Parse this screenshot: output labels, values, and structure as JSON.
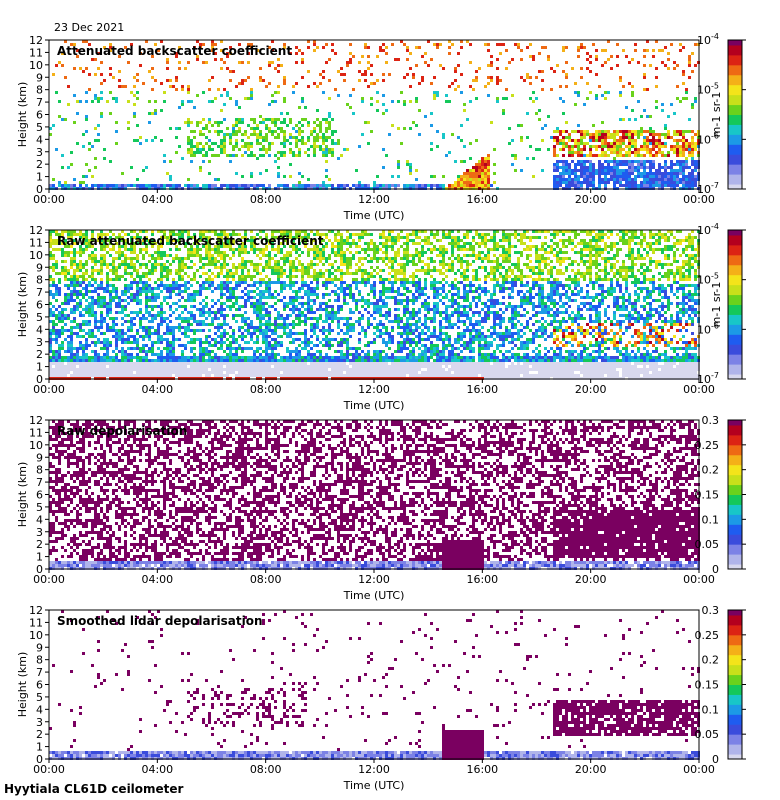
{
  "header": {
    "date": "23 Dec 2021"
  },
  "footer": {
    "site": "Hyytiala CL61D ceilometer"
  },
  "chart_data": [
    {
      "type": "heatmap",
      "title": "Attenuated backscatter coefficient",
      "xlabel": "Time (UTC)",
      "ylabel": "Height (km)",
      "x_ticks": [
        "00:00",
        "04:00",
        "08:00",
        "12:00",
        "16:00",
        "20:00",
        "00:00"
      ],
      "y_ticks": [
        "0",
        "1",
        "2",
        "3",
        "4",
        "5",
        "6",
        "7",
        "8",
        "9",
        "10",
        "11",
        "12"
      ],
      "ylim": [
        0,
        12
      ],
      "xlim_hours": [
        0,
        24
      ],
      "colorbar": {
        "scale": "log",
        "range": [
          1e-07,
          0.0001
        ],
        "ticks": [
          "10-7",
          "10-6",
          "10-5",
          "10-4"
        ],
        "unit": "m-1 sr-1"
      },
      "features": [
        {
          "desc": "boundary layer",
          "t": [
            0,
            16
          ],
          "h": [
            0,
            0.6
          ],
          "level": 0.55
        },
        {
          "desc": "mid-level cloud",
          "t": [
            5,
            10.5
          ],
          "h": [
            2.7,
            5.9
          ],
          "level": 0.6
        },
        {
          "desc": "rising cloud",
          "t": [
            14.5,
            16.2
          ],
          "h": [
            0,
            3
          ],
          "level": 0.9
        },
        {
          "desc": "cloud layer",
          "t": [
            18.5,
            24
          ],
          "h": [
            2.8,
            4.8
          ],
          "level": 0.9
        }
      ]
    },
    {
      "type": "heatmap",
      "title": "Raw attenuated backscatter coefficient",
      "xlabel": "Time (UTC)",
      "ylabel": "Height (km)",
      "x_ticks": [
        "00:00",
        "04:00",
        "08:00",
        "12:00",
        "16:00",
        "20:00",
        "00:00"
      ],
      "y_ticks": [
        "0",
        "1",
        "2",
        "3",
        "4",
        "5",
        "6",
        "7",
        "8",
        "9",
        "10",
        "11",
        "12"
      ],
      "ylim": [
        0,
        12
      ],
      "xlim_hours": [
        0,
        24
      ],
      "colorbar": {
        "scale": "log",
        "range": [
          1e-07,
          0.0001
        ],
        "ticks": [
          "10-7",
          "10-6",
          "10-5",
          "10-4"
        ],
        "unit": "m-1 sr-1"
      }
    },
    {
      "type": "heatmap",
      "title": "Raw depolarisation",
      "xlabel": "Time (UTC)",
      "ylabel": "Height (km)",
      "x_ticks": [
        "00:00",
        "04:00",
        "08:00",
        "12:00",
        "16:00",
        "20:00",
        "00:00"
      ],
      "y_ticks": [
        "0",
        "1",
        "2",
        "3",
        "4",
        "5",
        "6",
        "7",
        "8",
        "9",
        "10",
        "11",
        "12"
      ],
      "ylim": [
        0,
        12
      ],
      "xlim_hours": [
        0,
        24
      ],
      "colorbar": {
        "scale": "linear",
        "range": [
          0,
          0.3
        ],
        "ticks": [
          "0",
          "0.05",
          "0.1",
          "0.15",
          "0.2",
          "0.25",
          "0.3"
        ],
        "unit": ""
      }
    },
    {
      "type": "heatmap",
      "title": "Smoothed lidar depolarisation",
      "xlabel": "Time (UTC)",
      "ylabel": "Height (km)",
      "x_ticks": [
        "00:00",
        "04:00",
        "08:00",
        "12:00",
        "16:00",
        "20:00",
        "00:00"
      ],
      "y_ticks": [
        "0",
        "1",
        "2",
        "3",
        "4",
        "5",
        "6",
        "7",
        "8",
        "9",
        "10",
        "11",
        "12"
      ],
      "ylim": [
        0,
        12
      ],
      "xlim_hours": [
        0,
        24
      ],
      "colorbar": {
        "scale": "linear",
        "range": [
          0,
          0.3
        ],
        "ticks": [
          "0",
          "0.05",
          "0.1",
          "0.15",
          "0.2",
          "0.25",
          "0.3"
        ],
        "unit": ""
      }
    }
  ]
}
